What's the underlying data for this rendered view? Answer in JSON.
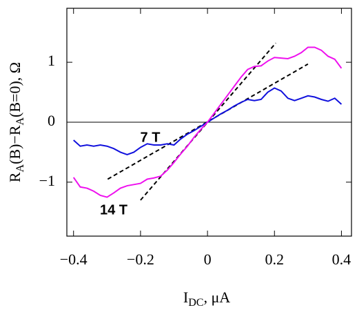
{
  "chart_data": {
    "type": "line",
    "x_label": [
      {
        "text": "I"
      },
      {
        "text": "DC",
        "sub": true
      },
      {
        "text": ", μA"
      }
    ],
    "y_label": [
      {
        "text": "R"
      },
      {
        "text": "A",
        "sub": true
      },
      {
        "text": "(B)−R"
      },
      {
        "text": "A",
        "sub": true
      },
      {
        "text": "(B=0), Ω"
      }
    ],
    "x": [
      -0.4,
      -0.38,
      -0.36,
      -0.34,
      -0.32,
      -0.3,
      -0.28,
      -0.26,
      -0.24,
      -0.22,
      -0.2,
      -0.18,
      -0.16,
      -0.14,
      -0.12,
      -0.1,
      -0.08,
      -0.06,
      -0.04,
      -0.02,
      0,
      0.02,
      0.04,
      0.06,
      0.08,
      0.1,
      0.12,
      0.14,
      0.16,
      0.18,
      0.2,
      0.22,
      0.24,
      0.26,
      0.28,
      0.3,
      0.32,
      0.34,
      0.36,
      0.38,
      0.4
    ],
    "series": [
      {
        "name": "7 T",
        "color": "#1010dd",
        "values": [
          -0.3,
          -0.4,
          -0.38,
          -0.4,
          -0.38,
          -0.4,
          -0.44,
          -0.5,
          -0.54,
          -0.5,
          -0.42,
          -0.36,
          -0.38,
          -0.38,
          -0.36,
          -0.38,
          -0.28,
          -0.2,
          -0.14,
          -0.07,
          0,
          0.07,
          0.14,
          0.2,
          0.27,
          0.33,
          0.38,
          0.36,
          0.38,
          0.5,
          0.57,
          0.52,
          0.4,
          0.36,
          0.4,
          0.44,
          0.42,
          0.38,
          0.35,
          0.4,
          0.3
        ]
      },
      {
        "name": "14 T",
        "color": "#ee10ee",
        "values": [
          -0.92,
          -1.08,
          -1.1,
          -1.15,
          -1.22,
          -1.25,
          -1.18,
          -1.1,
          -1.06,
          -1.04,
          -1.02,
          -0.95,
          -0.93,
          -0.9,
          -0.8,
          -0.67,
          -0.53,
          -0.4,
          -0.25,
          -0.12,
          0,
          0.15,
          0.3,
          0.45,
          0.6,
          0.75,
          0.88,
          0.93,
          0.94,
          1.02,
          1.08,
          1.07,
          1.06,
          1.1,
          1.16,
          1.25,
          1.25,
          1.2,
          1.1,
          1.05,
          0.9
        ]
      }
    ],
    "fit_lines": [
      {
        "x": [
          -0.298,
          0.3
        ],
        "y": [
          -0.95,
          0.97
        ]
      },
      {
        "x": [
          -0.2,
          0.204
        ],
        "y": [
          -1.3,
          1.32
        ]
      }
    ],
    "zero_line": 0,
    "xlim": [
      -0.42,
      0.43
    ],
    "ylim": [
      -1.9,
      1.9
    ],
    "xticks": [
      {
        "value": -0.4,
        "label": "−0.4"
      },
      {
        "value": -0.2,
        "label": "−0.2"
      },
      0,
      0.2,
      0.4
    ],
    "yticks": [
      {
        "value": -1,
        "label": "−1"
      },
      0,
      1
    ]
  }
}
